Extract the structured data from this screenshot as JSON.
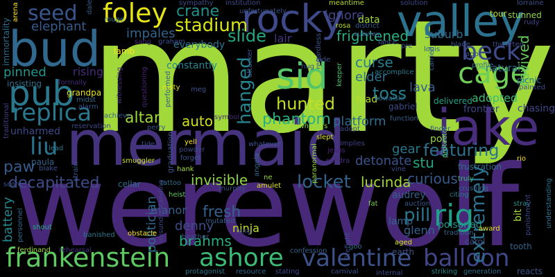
{
  "background_color": "#000000",
  "words": [
    {
      "text": "marty",
      "color": "#a2d93a"
    },
    {
      "text": "werewolf",
      "color": "#482878"
    },
    {
      "text": "mermaid",
      "color": "#46337e"
    },
    {
      "text": "jake",
      "color": "#472d7b"
    },
    {
      "text": "valley",
      "color": "#2c728e"
    },
    {
      "text": "bud",
      "color": "#31688e"
    },
    {
      "text": "rocky",
      "color": "#3e4a89"
    },
    {
      "text": "frankenstein",
      "color": "#5ec962"
    },
    {
      "text": "valentine",
      "color": "#3b528b"
    },
    {
      "text": "balloon",
      "color": "#404688"
    },
    {
      "text": "pub",
      "color": "#2a788e"
    },
    {
      "text": "sid",
      "color": "#54c568"
    },
    {
      "text": "foley",
      "color": "#e5e419"
    },
    {
      "text": "ashore",
      "color": "#3bbb75"
    },
    {
      "text": "replica",
      "color": "#2a788e"
    },
    {
      "text": "cage",
      "color": "#6ece58"
    },
    {
      "text": "beck",
      "color": "#3e4a89"
    },
    {
      "text": "liu",
      "color": "#2c728e"
    },
    {
      "text": "rig",
      "color": "#1fa187"
    },
    {
      "text": "extremely",
      "color": "#2d708e"
    },
    {
      "text": "seed",
      "color": "#39568c"
    },
    {
      "text": "stadium",
      "color": "#d8e219"
    },
    {
      "text": "hanged",
      "color": "#25848e"
    },
    {
      "text": "hunted",
      "color": "#c2df23"
    },
    {
      "text": "altar",
      "color": "#9fda3a"
    },
    {
      "text": "featuring",
      "color": "#2c728e"
    },
    {
      "text": "phantom",
      "color": "#29af7f"
    },
    {
      "text": "locket",
      "color": "#33638d"
    },
    {
      "text": "paw",
      "color": "#38598c"
    },
    {
      "text": "slide",
      "color": "#22a884"
    },
    {
      "text": "crane",
      "color": "#21918c"
    },
    {
      "text": "frightened",
      "color": "#28ae80"
    },
    {
      "text": "decapitated",
      "color": "#3e4c8a"
    },
    {
      "text": "revived",
      "color": "#67cc5c"
    },
    {
      "text": "toss",
      "color": "#27808e"
    },
    {
      "text": "fresh",
      "color": "#34618d"
    },
    {
      "text": "brahms",
      "color": "#26ad81"
    },
    {
      "text": "politician",
      "color": "#31688e"
    },
    {
      "text": "invisible",
      "color": "#8ed645"
    },
    {
      "text": "auto",
      "color": "#d0e11c"
    },
    {
      "text": "pill",
      "color": "#2b758e"
    },
    {
      "text": "lucinda",
      "color": "#a0da39"
    },
    {
      "text": "curious",
      "color": "#38598c"
    },
    {
      "text": "detonate",
      "color": "#3a548c"
    },
    {
      "text": "lava",
      "color": "#365d8d"
    },
    {
      "text": "curse",
      "color": "#287c8e"
    },
    {
      "text": "elder",
      "color": "#2c718e"
    },
    {
      "text": "impales",
      "color": "#32658e"
    },
    {
      "text": "ignore",
      "color": "#414487"
    },
    {
      "text": "elephant",
      "color": "#365c8d"
    },
    {
      "text": "denny",
      "color": "#3d4e8a"
    },
    {
      "text": "pinned",
      "color": "#1f958b"
    },
    {
      "text": "lair",
      "color": "#453882"
    },
    {
      "text": "platform",
      "color": "#2e6e8e"
    },
    {
      "text": "adopted",
      "color": "#3bbb75"
    },
    {
      "text": "stu",
      "color": "#22a884"
    },
    {
      "text": "gear",
      "color": "#2a788e"
    },
    {
      "text": "glenn",
      "color": "#33638d"
    },
    {
      "text": "manor",
      "color": "#355f8d"
    },
    {
      "text": "battery",
      "color": "#23888e"
    },
    {
      "text": "poisoned",
      "color": "#1f958b"
    },
    {
      "text": "ninja",
      "color": "#c5e021"
    },
    {
      "text": "suburb",
      "color": "#2e6d8e"
    },
    {
      "text": "constantly",
      "color": "#24868e"
    },
    {
      "text": "audrey",
      "color": "#33638d"
    },
    {
      "text": "mad",
      "color": "#b5de2b"
    },
    {
      "text": "natural",
      "color": "#2a788e"
    },
    {
      "text": "lamp",
      "color": "#32658e"
    },
    {
      "text": "pot",
      "color": "#93d741"
    },
    {
      "text": "everybody",
      "color": "#2a768e"
    },
    {
      "text": "rising",
      "color": "#472a7a"
    },
    {
      "text": "unharmed",
      "color": "#3f4889"
    },
    {
      "text": "heist",
      "color": "#5ec962"
    },
    {
      "text": "chasing",
      "color": "#404588"
    },
    {
      "text": "data",
      "color": "#a0da39"
    },
    {
      "text": "frontier",
      "color": "#3f4788"
    },
    {
      "text": "carol",
      "color": "#3b528b"
    },
    {
      "text": "earth",
      "color": "#3b528b"
    },
    {
      "text": "bit",
      "color": "#a5db36"
    },
    {
      "text": "delivered",
      "color": "#20a386"
    },
    {
      "text": "gabriel",
      "color": "#3e4c8a"
    },
    {
      "text": "frustration",
      "color": "#2d708e"
    },
    {
      "text": "crushing",
      "color": "#32658e"
    },
    {
      "text": "graduation",
      "color": "#3b528b"
    },
    {
      "text": "cellar",
      "color": "#2f6c8e"
    },
    {
      "text": "tattoo",
      "color": "#2e6e8e"
    },
    {
      "text": "hank",
      "color": "#a8db34"
    },
    {
      "text": "smuggler",
      "color": "#cde11d"
    },
    {
      "text": "forget",
      "color": "#3a548c"
    },
    {
      "text": "witnessing",
      "color": "#46307e"
    },
    {
      "text": "performed",
      "color": "#38598c"
    },
    {
      "text": "questioning",
      "color": "#482576"
    },
    {
      "text": "accomplice",
      "color": "#287d8e"
    },
    {
      "text": "attacker",
      "color": "#3a548c"
    },
    {
      "text": "profile",
      "color": "#2d708e"
    },
    {
      "text": "kowalski",
      "color": "#2e6d8e"
    },
    {
      "text": "downstairs",
      "color": "#8fd744"
    },
    {
      "text": "achieve",
      "color": "#365d8d"
    },
    {
      "text": "reservation",
      "color": "#3f4889"
    },
    {
      "text": "symbol",
      "color": "#472a7a"
    },
    {
      "text": "tide",
      "color": "#3c4f8a"
    },
    {
      "text": "yell",
      "color": "#fde725"
    },
    {
      "text": "powder",
      "color": "#3e4989"
    },
    {
      "text": "angela",
      "color": "#31688e"
    },
    {
      "text": "whatever",
      "color": "#3b528b"
    },
    {
      "text": "slept",
      "color": "#e2e418"
    },
    {
      "text": "jesus",
      "color": "#482475"
    },
    {
      "text": "sandra",
      "color": "#472f7d"
    },
    {
      "text": "paranormal",
      "color": "#95d840"
    },
    {
      "text": "vine",
      "color": "#3f4889"
    },
    {
      "text": "rio",
      "color": "#fde725"
    },
    {
      "text": "truly",
      "color": "#35b779"
    },
    {
      "text": "stray",
      "color": "#20928c"
    },
    {
      "text": "citing",
      "color": "#277f8e"
    },
    {
      "text": "auction",
      "color": "#375a8c"
    },
    {
      "text": "fat",
      "color": "#7ad151"
    },
    {
      "text": "mutated",
      "color": "#34608d"
    },
    {
      "text": "amulet",
      "color": "#e2e418"
    },
    {
      "text": "ne",
      "color": "#9bd93c"
    },
    {
      "text": "murphy",
      "color": "#3c4f8a"
    },
    {
      "text": "fang",
      "color": "#3f4889"
    },
    {
      "text": "heather",
      "color": "#3b528b"
    },
    {
      "text": "obstacle",
      "color": "#fde725"
    },
    {
      "text": "banished",
      "color": "#2a788e"
    },
    {
      "text": "misunderstanding",
      "color": "#3f4788"
    },
    {
      "text": "ferdinand",
      "color": "#a2da37"
    },
    {
      "text": "rehearsal",
      "color": "#46307e"
    },
    {
      "text": "shout",
      "color": "#25ab82"
    },
    {
      "text": "personnel",
      "color": "#2f6b8e"
    },
    {
      "text": "protagonist",
      "color": "#2a788e"
    },
    {
      "text": "resource",
      "color": "#31678e"
    },
    {
      "text": "stating",
      "color": "#3e4989"
    },
    {
      "text": "confession",
      "color": "#34618d"
    },
    {
      "text": "carnival",
      "color": "#3a548c"
    },
    {
      "text": "internal",
      "color": "#3e4a89"
    },
    {
      "text": "striking",
      "color": "#23898e"
    },
    {
      "text": "generation",
      "color": "#2d708e"
    },
    {
      "text": "reacts",
      "color": "#3a538b"
    },
    {
      "text": "firefight",
      "color": "#3c4f8a"
    },
    {
      "text": "goo",
      "color": "#2d708e"
    },
    {
      "text": "aged",
      "color": "#d8e219"
    },
    {
      "text": "tradition",
      "color": "#31688e"
    },
    {
      "text": "award",
      "color": "#e5e419"
    },
    {
      "text": "tooth",
      "color": "#34618d"
    },
    {
      "text": "punishment",
      "color": "#3e4989"
    },
    {
      "text": "understanding",
      "color": "#2b748e"
    },
    {
      "text": "picnic",
      "color": "#2a788e"
    },
    {
      "text": "painted",
      "color": "#3d4d8a"
    },
    {
      "text": "carried",
      "color": "#32648e"
    },
    {
      "text": "protector",
      "color": "#5cc863"
    },
    {
      "text": "finger",
      "color": "#3b528b"
    },
    {
      "text": "function",
      "color": "#34618d"
    },
    {
      "text": "adopt",
      "color": "#3e4a89"
    },
    {
      "text": "keeper",
      "color": "#4ac16d"
    },
    {
      "text": "hug",
      "color": "#3a538b"
    },
    {
      "text": "aide",
      "color": "#3b528b"
    },
    {
      "text": "regardless",
      "color": "#3b528b"
    },
    {
      "text": "implies",
      "color": "#424086"
    },
    {
      "text": "district",
      "color": "#38598c"
    },
    {
      "text": "subway",
      "color": "#3d4e8a"
    },
    {
      "text": "rosa",
      "color": "#b8de29"
    },
    {
      "text": "meantime",
      "color": "#bade28"
    },
    {
      "text": "solution",
      "color": "#3f4889"
    },
    {
      "text": "lorraine",
      "color": "#3b528b"
    },
    {
      "text": "tour",
      "color": "#b8de29"
    },
    {
      "text": "stunned",
      "color": "#90d743"
    },
    {
      "text": "rudy",
      "color": "#414487"
    },
    {
      "text": "thwarted",
      "color": "#3e4989"
    },
    {
      "text": "app",
      "color": "#3e4a89"
    },
    {
      "text": "blade",
      "color": "#3b528b"
    },
    {
      "text": "louis",
      "color": "#34618d"
    },
    {
      "text": "pre",
      "color": "#3b528b"
    },
    {
      "text": "lance",
      "color": "#3a548c"
    },
    {
      "text": "sympathy",
      "color": "#3e4c8a"
    },
    {
      "text": "institution",
      "color": "#3e4989"
    },
    {
      "text": "unfortunately",
      "color": "#3b528b"
    },
    {
      "text": "dale",
      "color": "#355e8d"
    },
    {
      "text": "rouge",
      "color": "#2e6e8e"
    },
    {
      "text": "sang",
      "color": "#472d7b"
    },
    {
      "text": "graham",
      "color": "#3b528b"
    },
    {
      "text": "lamb",
      "color": "#fde725"
    },
    {
      "text": "grandpa",
      "color": "#e7e419"
    },
    {
      "text": "alarm",
      "color": "#3a548c"
    },
    {
      "text": "midst",
      "color": "#31688e"
    },
    {
      "text": "meg",
      "color": "#3b528b"
    },
    {
      "text": "insisting",
      "color": "#2d708e"
    },
    {
      "text": "formally",
      "color": "#472a7a"
    },
    {
      "text": "immortality",
      "color": "#2e6e8e"
    },
    {
      "text": "arena",
      "color": "#fde725"
    },
    {
      "text": "traditional",
      "color": "#424086"
    },
    {
      "text": "perry",
      "color": "#3b528b"
    },
    {
      "text": "paula",
      "color": "#34618d"
    },
    {
      "text": "blake",
      "color": "#3b528b"
    },
    {
      "text": "lead",
      "color": "#2a788e"
    },
    {
      "text": "strain",
      "color": "#3a548c"
    },
    {
      "text": "score",
      "color": "#3b528b"
    },
    {
      "text": "rusty",
      "color": "#e5e419"
    }
  ]
}
